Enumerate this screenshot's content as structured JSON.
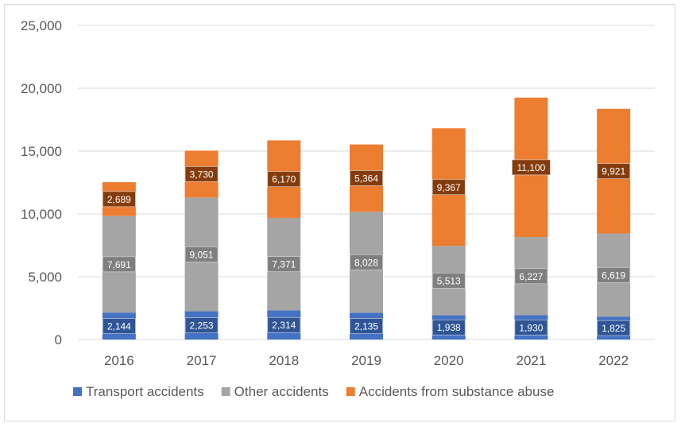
{
  "chart_data": {
    "type": "bar",
    "stacked": true,
    "title": "",
    "xlabel": "",
    "ylabel": "",
    "ylim": [
      0,
      25000
    ],
    "yticks": [
      0,
      5000,
      10000,
      15000,
      20000,
      25000
    ],
    "ytick_labels": [
      "0",
      "5,000",
      "10,000",
      "15,000",
      "20,000",
      "25,000"
    ],
    "grid": true,
    "legend_position": "bottom",
    "categories": [
      "2016",
      "2017",
      "2018",
      "2019",
      "2020",
      "2021",
      "2022"
    ],
    "series": [
      {
        "name": "Transport accidents",
        "color": "#4472c4",
        "label_bg": "#2f5597",
        "values": [
          2144,
          2253,
          2314,
          2135,
          1938,
          1930,
          1825
        ],
        "labels": [
          "2,144",
          "2,253",
          "2,314",
          "2,135",
          "1,938",
          "1,930",
          "1,825"
        ]
      },
      {
        "name": "Other accidents",
        "color": "#a5a5a5",
        "label_bg": "#7f7f7f",
        "values": [
          7691,
          9051,
          7371,
          8028,
          5513,
          6227,
          6619
        ],
        "labels": [
          "7,691",
          "9,051",
          "7,371",
          "8,028",
          "5,513",
          "6,227",
          "6,619"
        ]
      },
      {
        "name": "Accidents from substance abuse",
        "color": "#ed7d31",
        "label_bg": "#843c0c",
        "values": [
          2689,
          3730,
          6170,
          5364,
          9367,
          11100,
          9921
        ],
        "labels": [
          "2,689",
          "3,730",
          "6,170",
          "5,364",
          "9,367",
          "11,100",
          "9,921"
        ]
      }
    ]
  }
}
